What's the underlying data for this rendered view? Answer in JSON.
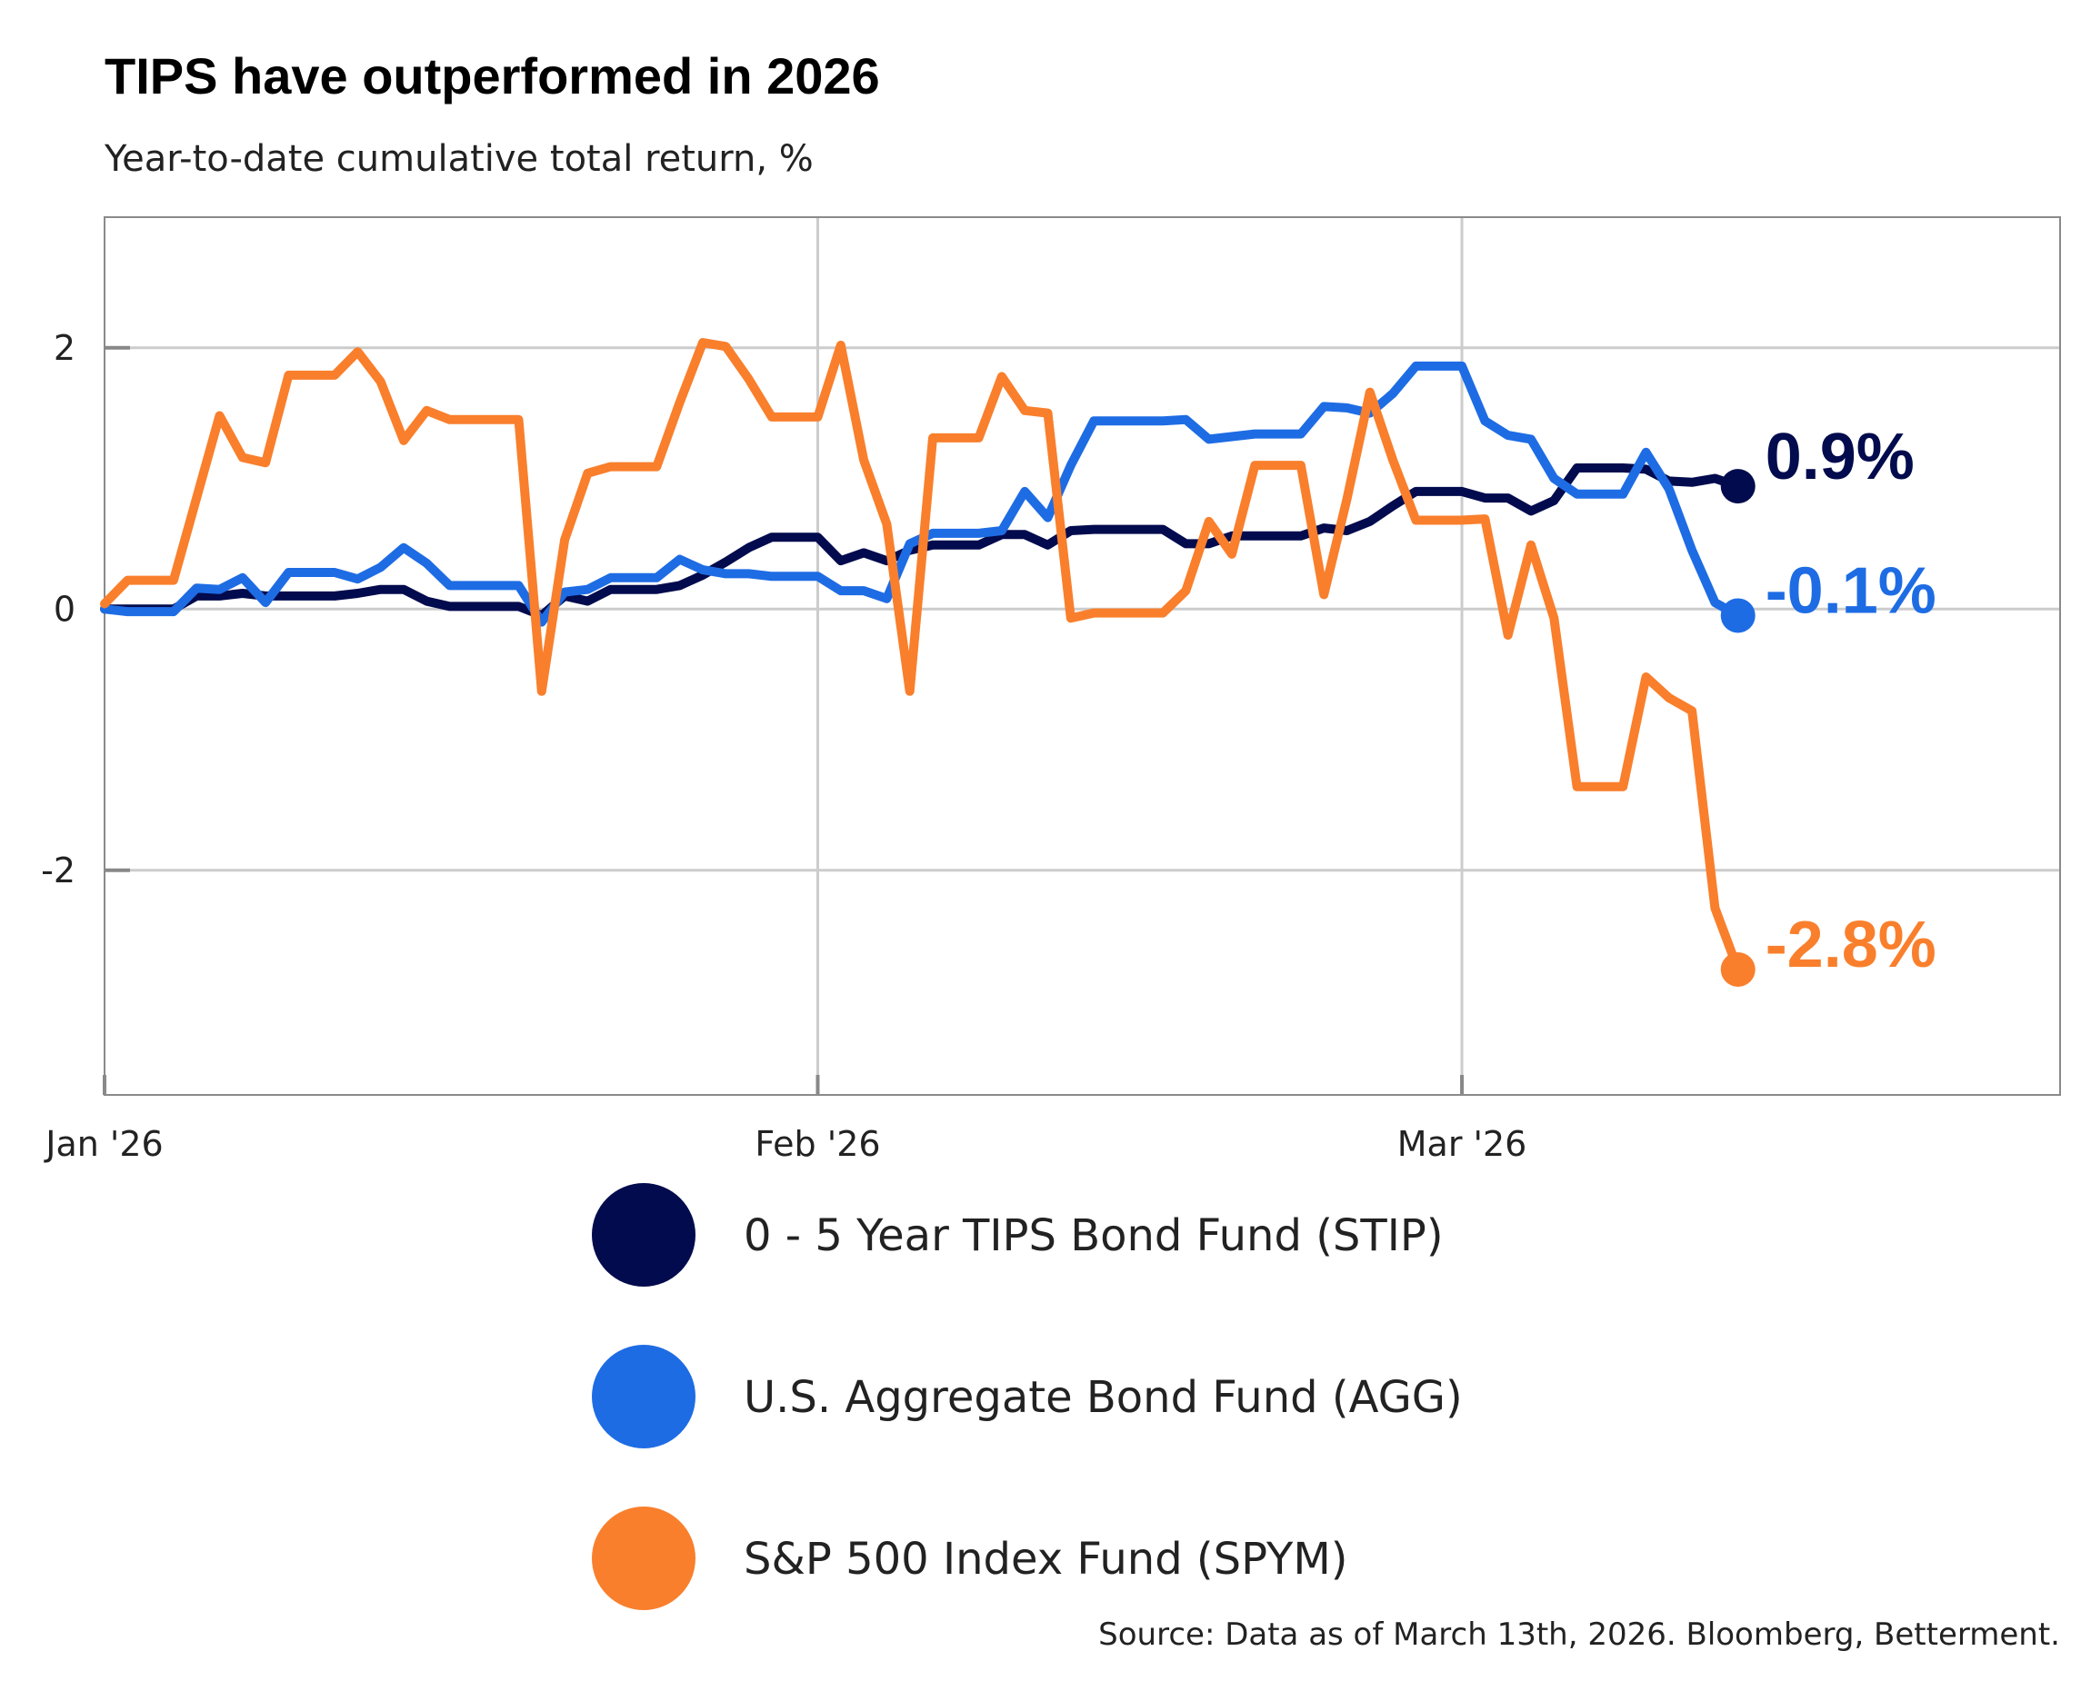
{
  "chart_data": {
    "type": "line",
    "title": "TIPS have outperformed in 2026",
    "subtitle": "Year-to-date cumulative total return, %",
    "xlabel": "",
    "ylabel": "",
    "xlim": [
      "2026-01-01",
      "2026-03-27"
    ],
    "ylim": [
      -3.72,
      3
    ],
    "x_ticks": [
      {
        "date": "2026-01-01",
        "label": "Jan '26"
      },
      {
        "date": "2026-02-01",
        "label": "Feb '26"
      },
      {
        "date": "2026-03-01",
        "label": "Mar '26"
      }
    ],
    "y_ticks": [
      {
        "value": 2,
        "label": "2"
      },
      {
        "value": 0,
        "label": "0"
      },
      {
        "value": -2,
        "label": "-2"
      }
    ],
    "grid": true,
    "legend_placement": "bottom",
    "source": "Source: Data as of March 13th, 2026. Bloomberg, Betterment.",
    "series": [
      {
        "name": "0 - 5 Year TIPS Bond Fund (STIP)",
        "color": "#020b4d",
        "end_label": "0.9%",
        "points": [
          [
            "2026-01-01",
            0
          ],
          [
            "2026-01-02",
            0
          ],
          [
            "2026-01-04",
            0
          ],
          [
            "2026-01-05",
            0.1
          ],
          [
            "2026-01-06",
            0.1
          ],
          [
            "2026-01-07",
            0.12
          ],
          [
            "2026-01-08",
            0.1
          ],
          [
            "2026-01-11",
            0.1
          ],
          [
            "2026-01-12",
            0.12
          ],
          [
            "2026-01-13",
            0.15
          ],
          [
            "2026-01-14",
            0.15
          ],
          [
            "2026-01-15",
            0.06
          ],
          [
            "2026-01-16",
            0.02
          ],
          [
            "2026-01-19",
            0.02
          ],
          [
            "2026-01-20",
            -0.05
          ],
          [
            "2026-01-21",
            0.1
          ],
          [
            "2026-01-22",
            0.06
          ],
          [
            "2026-01-23",
            0.15
          ],
          [
            "2026-01-25",
            0.15
          ],
          [
            "2026-01-26",
            0.18
          ],
          [
            "2026-01-27",
            0.26
          ],
          [
            "2026-01-28",
            0.36
          ],
          [
            "2026-01-29",
            0.47
          ],
          [
            "2026-01-30",
            0.55
          ],
          [
            "2026-02-01",
            0.55
          ],
          [
            "2026-02-02",
            0.37
          ],
          [
            "2026-02-03",
            0.43
          ],
          [
            "2026-02-04",
            0.37
          ],
          [
            "2026-02-05",
            0.45
          ],
          [
            "2026-02-06",
            0.49
          ],
          [
            "2026-02-08",
            0.49
          ],
          [
            "2026-02-09",
            0.57
          ],
          [
            "2026-02-10",
            0.57
          ],
          [
            "2026-02-11",
            0.49
          ],
          [
            "2026-02-12",
            0.6
          ],
          [
            "2026-02-13",
            0.61
          ],
          [
            "2026-02-16",
            0.61
          ],
          [
            "2026-02-17",
            0.5
          ],
          [
            "2026-02-18",
            0.5
          ],
          [
            "2026-02-19",
            0.56
          ],
          [
            "2026-02-20",
            0.56
          ],
          [
            "2026-02-22",
            0.56
          ],
          [
            "2026-02-23",
            0.62
          ],
          [
            "2026-02-24",
            0.6
          ],
          [
            "2026-02-25",
            0.67
          ],
          [
            "2026-02-26",
            0.79
          ],
          [
            "2026-02-27",
            0.9
          ],
          [
            "2026-03-01",
            0.9
          ],
          [
            "2026-03-02",
            0.85
          ],
          [
            "2026-03-03",
            0.85
          ],
          [
            "2026-03-04",
            0.75
          ],
          [
            "2026-03-05",
            0.83
          ],
          [
            "2026-03-06",
            1.08
          ],
          [
            "2026-03-08",
            1.08
          ],
          [
            "2026-03-09",
            1.07
          ],
          [
            "2026-03-10",
            0.98
          ],
          [
            "2026-03-11",
            0.97
          ],
          [
            "2026-03-12",
            1.0
          ],
          [
            "2026-03-13",
            0.94
          ]
        ]
      },
      {
        "name": "U.S. Aggregate Bond Fund (AGG)",
        "color": "#1e6ce4",
        "end_label": "-0.1%",
        "points": [
          [
            "2026-01-01",
            0
          ],
          [
            "2026-01-02",
            -0.02
          ],
          [
            "2026-01-04",
            -0.02
          ],
          [
            "2026-01-05",
            0.16
          ],
          [
            "2026-01-06",
            0.15
          ],
          [
            "2026-01-07",
            0.24
          ],
          [
            "2026-01-08",
            0.05
          ],
          [
            "2026-01-09",
            0.28
          ],
          [
            "2026-01-11",
            0.28
          ],
          [
            "2026-01-12",
            0.23
          ],
          [
            "2026-01-13",
            0.32
          ],
          [
            "2026-01-14",
            0.47
          ],
          [
            "2026-01-15",
            0.35
          ],
          [
            "2026-01-16",
            0.18
          ],
          [
            "2026-01-19",
            0.18
          ],
          [
            "2026-01-20",
            -0.1
          ],
          [
            "2026-01-21",
            0.13
          ],
          [
            "2026-01-22",
            0.15
          ],
          [
            "2026-01-23",
            0.24
          ],
          [
            "2026-01-25",
            0.24
          ],
          [
            "2026-01-26",
            0.38
          ],
          [
            "2026-01-27",
            0.3
          ],
          [
            "2026-01-28",
            0.27
          ],
          [
            "2026-01-29",
            0.27
          ],
          [
            "2026-01-30",
            0.25
          ],
          [
            "2026-02-01",
            0.25
          ],
          [
            "2026-02-02",
            0.14
          ],
          [
            "2026-02-03",
            0.14
          ],
          [
            "2026-02-04",
            0.08
          ],
          [
            "2026-02-05",
            0.5
          ],
          [
            "2026-02-06",
            0.58
          ],
          [
            "2026-02-08",
            0.58
          ],
          [
            "2026-02-09",
            0.6
          ],
          [
            "2026-02-10",
            0.9
          ],
          [
            "2026-02-11",
            0.7
          ],
          [
            "2026-02-12",
            1.1
          ],
          [
            "2026-02-13",
            1.44
          ],
          [
            "2026-02-16",
            1.44
          ],
          [
            "2026-02-17",
            1.45
          ],
          [
            "2026-02-18",
            1.3
          ],
          [
            "2026-02-19",
            1.32
          ],
          [
            "2026-02-20",
            1.34
          ],
          [
            "2026-02-22",
            1.34
          ],
          [
            "2026-02-23",
            1.55
          ],
          [
            "2026-02-24",
            1.54
          ],
          [
            "2026-02-25",
            1.5
          ],
          [
            "2026-02-26",
            1.65
          ],
          [
            "2026-02-27",
            1.86
          ],
          [
            "2026-03-01",
            1.86
          ],
          [
            "2026-03-02",
            1.44
          ],
          [
            "2026-03-03",
            1.33
          ],
          [
            "2026-03-04",
            1.3
          ],
          [
            "2026-03-05",
            1.0
          ],
          [
            "2026-03-06",
            0.88
          ],
          [
            "2026-03-08",
            0.88
          ],
          [
            "2026-03-09",
            1.2
          ],
          [
            "2026-03-10",
            0.92
          ],
          [
            "2026-03-11",
            0.45
          ],
          [
            "2026-03-12",
            0.05
          ],
          [
            "2026-03-13",
            -0.05
          ]
        ]
      },
      {
        "name": "S&P 500 Index Fund (SPYM)",
        "color": "#f97f2c",
        "end_label": "-2.8%",
        "points": [
          [
            "2026-01-01",
            0.04
          ],
          [
            "2026-01-02",
            0.22
          ],
          [
            "2026-01-04",
            0.22
          ],
          [
            "2026-01-06",
            1.48
          ],
          [
            "2026-01-07",
            1.16
          ],
          [
            "2026-01-08",
            1.12
          ],
          [
            "2026-01-09",
            1.79
          ],
          [
            "2026-01-11",
            1.79
          ],
          [
            "2026-01-12",
            1.97
          ],
          [
            "2026-01-13",
            1.74
          ],
          [
            "2026-01-14",
            1.29
          ],
          [
            "2026-01-15",
            1.52
          ],
          [
            "2026-01-16",
            1.45
          ],
          [
            "2026-01-19",
            1.45
          ],
          [
            "2026-01-20",
            -0.63
          ],
          [
            "2026-01-21",
            0.53
          ],
          [
            "2026-01-22",
            1.04
          ],
          [
            "2026-01-23",
            1.09
          ],
          [
            "2026-01-25",
            1.09
          ],
          [
            "2026-01-26",
            1.58
          ],
          [
            "2026-01-27",
            2.04
          ],
          [
            "2026-01-28",
            2.01
          ],
          [
            "2026-01-29",
            1.76
          ],
          [
            "2026-01-30",
            1.47
          ],
          [
            "2026-02-01",
            1.47
          ],
          [
            "2026-02-02",
            2.02
          ],
          [
            "2026-02-03",
            1.14
          ],
          [
            "2026-02-04",
            0.65
          ],
          [
            "2026-02-05",
            -0.63
          ],
          [
            "2026-02-06",
            1.31
          ],
          [
            "2026-02-08",
            1.31
          ],
          [
            "2026-02-09",
            1.78
          ],
          [
            "2026-02-10",
            1.52
          ],
          [
            "2026-02-11",
            1.5
          ],
          [
            "2026-02-12",
            -0.07
          ],
          [
            "2026-02-13",
            -0.03
          ],
          [
            "2026-02-16",
            -0.03
          ],
          [
            "2026-02-17",
            0.14
          ],
          [
            "2026-02-18",
            0.67
          ],
          [
            "2026-02-19",
            0.42
          ],
          [
            "2026-02-20",
            1.1
          ],
          [
            "2026-02-22",
            1.1
          ],
          [
            "2026-02-23",
            0.11
          ],
          [
            "2026-02-24",
            0.84
          ],
          [
            "2026-02-25",
            1.66
          ],
          [
            "2026-02-26",
            1.14
          ],
          [
            "2026-02-27",
            0.68
          ],
          [
            "2026-03-01",
            0.68
          ],
          [
            "2026-03-02",
            0.69
          ],
          [
            "2026-03-03",
            -0.2
          ],
          [
            "2026-03-04",
            0.49
          ],
          [
            "2026-03-05",
            -0.07
          ],
          [
            "2026-03-06",
            -1.36
          ],
          [
            "2026-03-08",
            -1.36
          ],
          [
            "2026-03-09",
            -0.52
          ],
          [
            "2026-03-10",
            -0.68
          ],
          [
            "2026-03-11",
            -0.78
          ],
          [
            "2026-03-12",
            -2.29
          ],
          [
            "2026-03-13",
            -2.76
          ]
        ]
      }
    ]
  }
}
